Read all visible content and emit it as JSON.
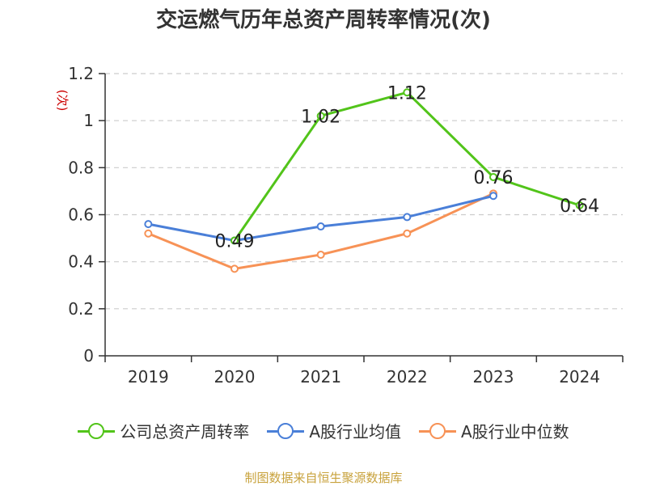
{
  "chart_data": {
    "type": "line",
    "title": "交运燃气历年总资产周转率情况(次)",
    "ylabel": "(次)",
    "xlabel": "",
    "categories": [
      "2019",
      "2020",
      "2021",
      "2022",
      "2023",
      "2024"
    ],
    "ylim": [
      0,
      1.2
    ],
    "yticks": [
      0,
      0.2,
      0.4,
      0.6,
      0.8,
      1,
      1.2
    ],
    "ytick_labels": [
      "0",
      "0.2",
      "0.4",
      "0.6",
      "0.8",
      "1",
      "1.2"
    ],
    "grid": true,
    "legend_position": "bottom",
    "series": [
      {
        "name": "公司总资产周转率",
        "color": "#52c41a",
        "values": [
          null,
          0.49,
          1.02,
          1.12,
          0.76,
          0.64
        ],
        "labels": [
          "",
          "0.49",
          "1.02",
          "1.12",
          "0.76",
          "0.64"
        ]
      },
      {
        "name": "A股行业均值",
        "color": "#4a7fd8",
        "values": [
          0.56,
          0.49,
          0.55,
          0.59,
          0.68,
          null
        ],
        "labels": [
          "",
          "",
          "",
          "",
          "",
          ""
        ]
      },
      {
        "name": "A股行业中位数",
        "color": "#f79256",
        "values": [
          0.52,
          0.37,
          0.43,
          0.52,
          0.69,
          null
        ],
        "labels": [
          "",
          "",
          "",
          "",
          "",
          ""
        ]
      }
    ]
  },
  "source": "制图数据来自恒生聚源数据库"
}
